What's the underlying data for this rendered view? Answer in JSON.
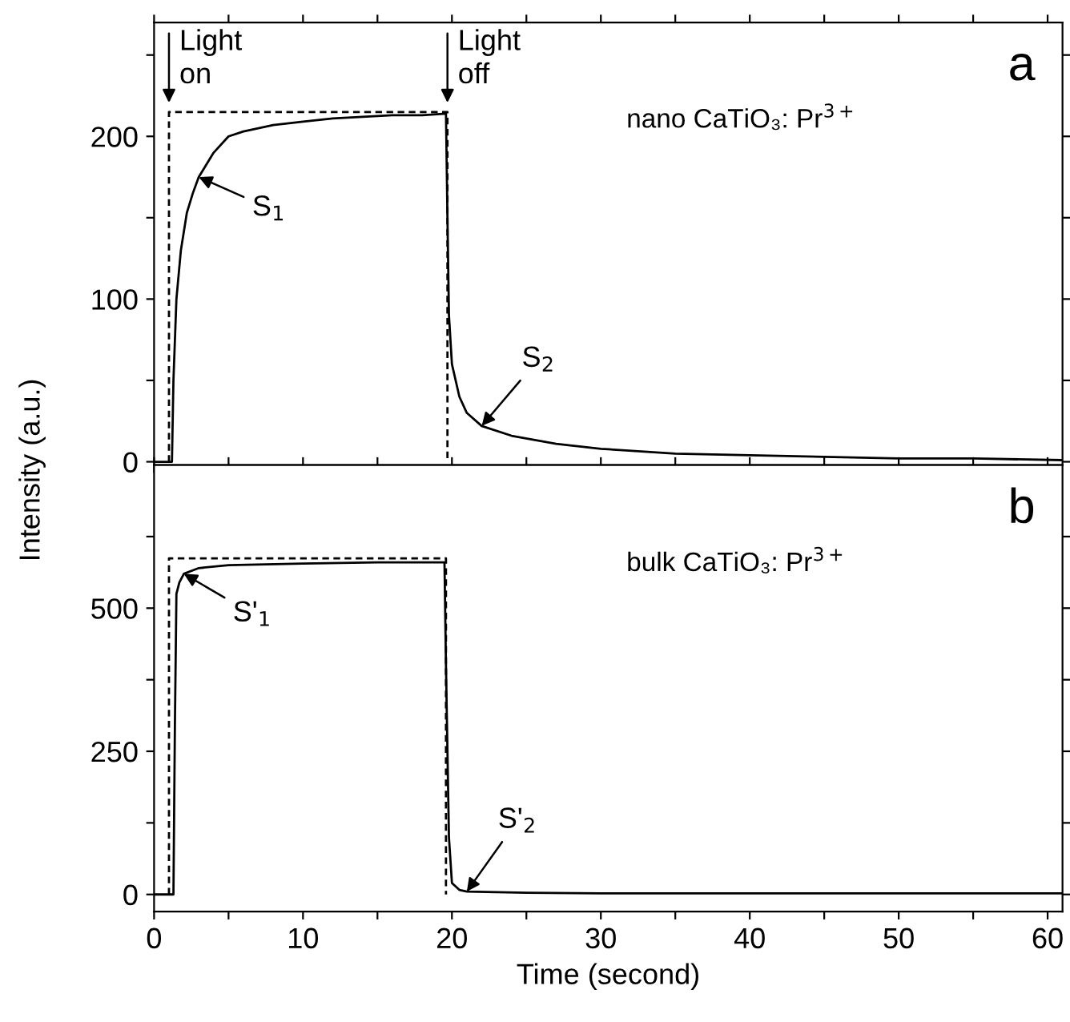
{
  "chart_data": [
    {
      "type": "line",
      "ylabel": "Intensity (a.u.)",
      "xlim": [
        0,
        61
      ],
      "xticks": [
        0,
        {
          "value": 5,
          "label": null
        },
        10,
        {
          "value": 15,
          "label": null
        },
        20,
        {
          "value": 25,
          "label": null
        },
        30,
        {
          "value": 35,
          "label": null
        },
        40,
        {
          "value": 45,
          "label": null
        },
        50,
        {
          "value": 55,
          "label": null
        },
        60
      ],
      "ylim": [
        -2,
        270
      ],
      "yticks": [
        0,
        {
          "value": 50,
          "label": null
        },
        100,
        {
          "value": 150,
          "label": null
        },
        200,
        {
          "value": 250,
          "label": null
        }
      ],
      "tick_labels": "y",
      "grid": false,
      "legend": false,
      "series": [
        {
          "color": "#000000",
          "line_style": "solid",
          "x": [
            0,
            1.2,
            1.3,
            1.5,
            1.8,
            2.2,
            2.6,
            3.0,
            4,
            5,
            6,
            8,
            10,
            12,
            14,
            16,
            18,
            19.6,
            19.7,
            19.8,
            20,
            20.5,
            21,
            22,
            24,
            27,
            30,
            35,
            40,
            45,
            50,
            55,
            61
          ],
          "values": [
            0,
            0,
            50,
            100,
            130,
            153,
            165,
            175,
            190,
            200,
            203,
            207,
            209,
            211,
            212,
            213,
            213,
            214,
            150,
            90,
            60,
            40,
            30,
            22,
            16,
            11,
            8,
            5,
            4,
            3,
            2,
            2,
            1
          ]
        },
        {
          "color": "#000000",
          "line_style": "dashed",
          "x": [
            1.0,
            1.0,
            19.7,
            19.7
          ],
          "values": [
            0,
            215,
            215,
            0
          ]
        }
      ],
      "annotations": [
        "a",
        "nano CaTiO₃: Pr$^{3+}$",
        {
          "text": "Light\non",
          "x": 1.0,
          "y": 218
        },
        {
          "text": "Light\noff",
          "x": 19.7,
          "y": 218
        },
        {
          "text": "S$_{1}$",
          "x": 3.0,
          "y": 175
        },
        {
          "text": "S$_{2}$",
          "x": 22,
          "y": 22
        }
      ]
    },
    {
      "type": "line",
      "xlabel": "Time (second)",
      "xlim": [
        0,
        61
      ],
      "xticks": [
        0,
        {
          "value": 5,
          "label": null
        },
        10,
        {
          "value": 15,
          "label": null
        },
        20,
        {
          "value": 25,
          "label": null
        },
        30,
        {
          "value": 35,
          "label": null
        },
        40,
        {
          "value": 45,
          "label": null
        },
        50,
        {
          "value": 55,
          "label": null
        },
        60
      ],
      "ylim": [
        -30,
        750
      ],
      "yticks": [
        0,
        {
          "value": 125,
          "label": null
        },
        250,
        {
          "value": 375,
          "label": null
        },
        500,
        {
          "value": 625,
          "label": null
        }
      ],
      "grid": false,
      "legend": false,
      "series": [
        {
          "color": "#000000",
          "line_style": "solid",
          "x": [
            0,
            1.3,
            1.4,
            1.5,
            1.7,
            2,
            3,
            5,
            10,
            15,
            19.5,
            19.6,
            19.8,
            20.0,
            20.5,
            21,
            25,
            30,
            40,
            61
          ],
          "values": [
            0,
            0,
            300,
            525,
            545,
            560,
            570,
            575,
            578,
            580,
            580,
            400,
            100,
            20,
            8,
            5,
            3,
            2,
            2,
            2
          ]
        },
        {
          "color": "#000000",
          "line_style": "dashed",
          "x": [
            1.0,
            1.0,
            19.6,
            19.6
          ],
          "values": [
            0,
            587,
            587,
            0
          ]
        }
      ],
      "annotations": [
        "b",
        "bulk CaTiO₃: Pr$^{3+}$",
        {
          "text": "S'$_{1}$",
          "x": 2,
          "y": 560
        },
        {
          "text": "S'$_{2}$",
          "x": 21,
          "y": 5
        }
      ]
    }
  ]
}
